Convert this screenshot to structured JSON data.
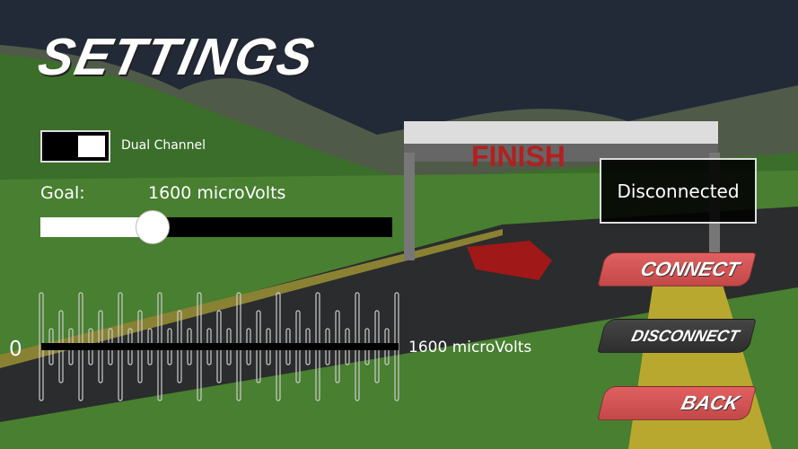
{
  "title": "SETTINGS",
  "toggle": {
    "label": "Dual Channel",
    "on": true
  },
  "goal": {
    "label": "Goal:",
    "value_text": "1600 microVolts",
    "slider_fraction": 0.32
  },
  "signal": {
    "min_label": "0",
    "max_label": "1600 microVolts"
  },
  "status": {
    "text": "Disconnected"
  },
  "buttons": {
    "connect": "CONNECT",
    "disconnect": "DISCONNECT",
    "back": "BACK"
  },
  "scene": {
    "banner_text": "FINISH"
  },
  "colors": {
    "red_button": "#d45353",
    "dark_button": "#3a3a3a",
    "sky": "#232a3a",
    "grass": "#3f7a2c",
    "road": "#2a2b2c"
  }
}
